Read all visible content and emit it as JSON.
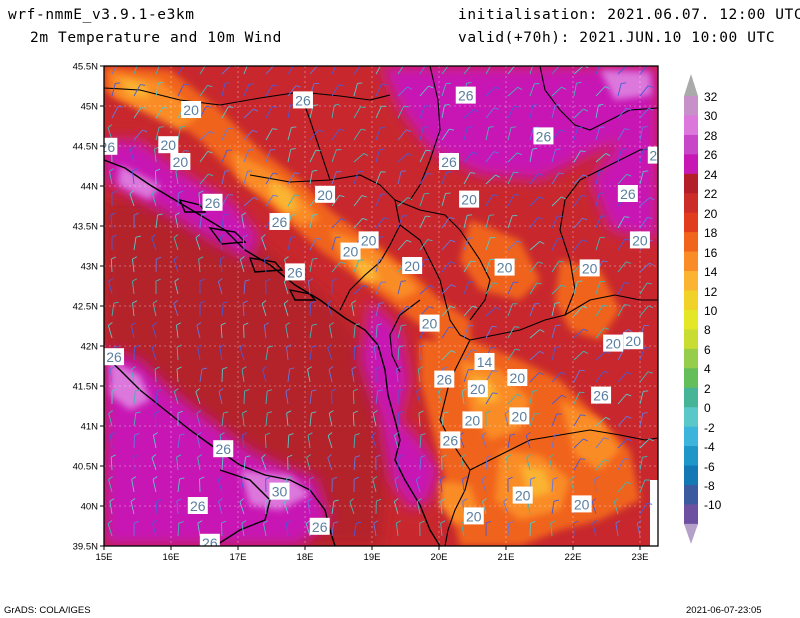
{
  "header": {
    "model": "wrf-nmmE_v3.9.1-e3km",
    "product": "2m Temperature and 10m Wind",
    "init": "initialisation: 2021.06.07. 12:00 UTC",
    "valid": "valid(+70h): 2021.JUN.10 10:00 UTC"
  },
  "axes": {
    "lat_labels": [
      "45.5N",
      "45N",
      "44.5N",
      "44N",
      "43.5N",
      "43N",
      "42.5N",
      "42N",
      "41.5N",
      "41N",
      "40.5N",
      "40N",
      "39.5N"
    ],
    "lon_labels": [
      "15E",
      "16E",
      "17E",
      "18E",
      "19E",
      "20E",
      "21E",
      "22E",
      "23E"
    ]
  },
  "colorbar": {
    "labels": [
      "32",
      "30",
      "28",
      "26",
      "24",
      "22",
      "20",
      "18",
      "16",
      "14",
      "12",
      "10",
      "8",
      "6",
      "4",
      "2",
      "0",
      "-2",
      "-4",
      "-6",
      "-8",
      "-10"
    ],
    "colors": [
      "#c890c8",
      "#dc78dc",
      "#c846c8",
      "#c818b4",
      "#b41e28",
      "#cd2d28",
      "#e13c1e",
      "#f0641e",
      "#fa8c28",
      "#fab432",
      "#f0d228",
      "#e6e628",
      "#c8dc32",
      "#96cd4b",
      "#64be5a",
      "#46b496",
      "#5ac8c8",
      "#3cb4dc",
      "#1e96c8",
      "#1478b4",
      "#3c5aa0",
      "#6e50a0"
    ],
    "top_arrow_color": "#aaaaaa",
    "bottom_arrow_color": "#b4a0c8"
  },
  "temperature_labels": [
    {
      "text": "20",
      "lon": 15.96,
      "lat": 44.51
    },
    {
      "text": "20",
      "lon": 16.14,
      "lat": 44.3
    },
    {
      "text": "26",
      "lon": 15.05,
      "lat": 44.49
    },
    {
      "text": "20",
      "lon": 16.3,
      "lat": 44.95
    },
    {
      "text": "26",
      "lon": 17.97,
      "lat": 45.07
    },
    {
      "text": "26",
      "lon": 20.4,
      "lat": 45.13
    },
    {
      "text": "26",
      "lon": 20.15,
      "lat": 44.3
    },
    {
      "text": "26",
      "lon": 21.56,
      "lat": 44.62
    },
    {
      "text": "2",
      "lon": 23.2,
      "lat": 44.38
    },
    {
      "text": "26",
      "lon": 16.62,
      "lat": 43.79
    },
    {
      "text": "20",
      "lon": 18.3,
      "lat": 43.89
    },
    {
      "text": "20",
      "lon": 20.45,
      "lat": 43.83
    },
    {
      "text": "26",
      "lon": 22.82,
      "lat": 43.9
    },
    {
      "text": "26",
      "lon": 17.62,
      "lat": 43.55
    },
    {
      "text": "20",
      "lon": 18.95,
      "lat": 43.32
    },
    {
      "text": "20",
      "lon": 18.68,
      "lat": 43.18
    },
    {
      "text": "20",
      "lon": 23.0,
      "lat": 43.32
    },
    {
      "text": "26",
      "lon": 17.85,
      "lat": 42.92
    },
    {
      "text": "20",
      "lon": 19.6,
      "lat": 43.0
    },
    {
      "text": "20",
      "lon": 20.98,
      "lat": 42.98
    },
    {
      "text": "20",
      "lon": 22.25,
      "lat": 42.97
    },
    {
      "text": "20",
      "lon": 19.86,
      "lat": 42.28
    },
    {
      "text": "20",
      "lon": 22.6,
      "lat": 42.03
    },
    {
      "text": "20",
      "lon": 22.9,
      "lat": 42.06
    },
    {
      "text": "26",
      "lon": 15.15,
      "lat": 41.86
    },
    {
      "text": "14",
      "lon": 20.68,
      "lat": 41.8
    },
    {
      "text": "26",
      "lon": 20.08,
      "lat": 41.58
    },
    {
      "text": "20",
      "lon": 20.58,
      "lat": 41.46
    },
    {
      "text": "20",
      "lon": 21.17,
      "lat": 41.6
    },
    {
      "text": "26",
      "lon": 22.42,
      "lat": 41.38
    },
    {
      "text": "20",
      "lon": 20.5,
      "lat": 41.07
    },
    {
      "text": "20",
      "lon": 21.2,
      "lat": 41.12
    },
    {
      "text": "26",
      "lon": 20.17,
      "lat": 40.82
    },
    {
      "text": "26",
      "lon": 16.78,
      "lat": 40.71
    },
    {
      "text": "30",
      "lon": 17.62,
      "lat": 40.18
    },
    {
      "text": "20",
      "lon": 21.25,
      "lat": 40.13
    },
    {
      "text": "26",
      "lon": 16.4,
      "lat": 40.0
    },
    {
      "text": "20",
      "lon": 22.13,
      "lat": 40.02
    },
    {
      "text": "20",
      "lon": 20.52,
      "lat": 39.87
    },
    {
      "text": "26",
      "lon": 18.22,
      "lat": 39.74
    },
    {
      "text": "26",
      "lon": 16.58,
      "lat": 39.54
    }
  ],
  "footer": {
    "left": "GrADS: COLA/IGES",
    "right": "2021-06-07-23:05"
  }
}
